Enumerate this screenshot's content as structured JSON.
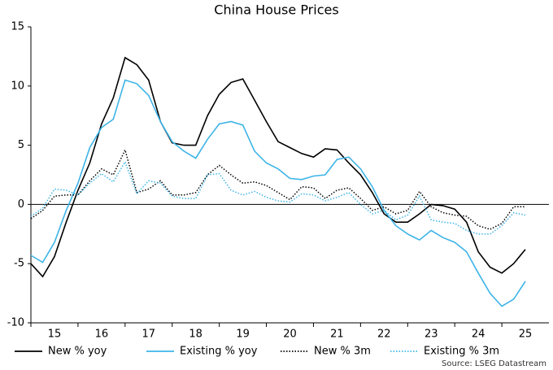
{
  "chart_data": {
    "type": "line",
    "title": "China House Prices",
    "source": "Source: LSEG Datastream",
    "x": [
      15,
      15.25,
      15.5,
      15.75,
      16,
      16.25,
      16.5,
      16.75,
      17,
      17.25,
      17.5,
      17.75,
      18,
      18.25,
      18.5,
      18.75,
      19,
      19.25,
      19.5,
      19.75,
      20,
      20.25,
      20.5,
      20.75,
      21,
      21.25,
      21.5,
      21.75,
      22,
      22.25,
      22.5,
      22.75,
      23,
      23.25,
      23.5,
      23.75,
      24,
      24.25,
      24.5,
      24.75,
      25,
      25.25,
      25.5
    ],
    "series": [
      {
        "name": "New % yoy",
        "color": "#000000",
        "style": "solid",
        "values": [
          -5.0,
          -6.1,
          -4.4,
          -1.5,
          1.2,
          3.5,
          6.8,
          9.0,
          12.4,
          11.8,
          10.5,
          7.0,
          5.2,
          5.0,
          5.0,
          7.5,
          9.3,
          10.3,
          10.6,
          8.8,
          7.0,
          5.3,
          4.8,
          4.3,
          4.0,
          4.7,
          4.6,
          3.5,
          2.5,
          1.0,
          -0.8,
          -1.5,
          -1.5,
          -0.8,
          0.0,
          -0.1,
          -0.4,
          -1.5,
          -4.0,
          -5.3,
          -5.8,
          -5.0,
          -3.8
        ]
      },
      {
        "name": "Existing % yoy",
        "color": "#3db4e8",
        "style": "solid",
        "values": [
          -4.3,
          -4.9,
          -3.2,
          -0.5,
          1.8,
          4.8,
          6.5,
          7.2,
          10.5,
          10.2,
          9.2,
          7.0,
          5.3,
          4.5,
          3.9,
          5.5,
          6.8,
          7.0,
          6.7,
          4.5,
          3.5,
          3.0,
          2.2,
          2.1,
          2.4,
          2.5,
          3.8,
          4.0,
          3.0,
          1.5,
          -0.5,
          -1.8,
          -2.5,
          -3.0,
          -2.2,
          -2.8,
          -3.2,
          -4.0,
          -5.8,
          -7.5,
          -8.6,
          -8.0,
          -6.5
        ]
      },
      {
        "name": "New % 3m",
        "color": "#000000",
        "style": "dotted",
        "values": [
          -1.2,
          -0.5,
          0.7,
          0.8,
          0.8,
          2.0,
          3.0,
          2.5,
          4.6,
          1.0,
          1.3,
          2.0,
          0.8,
          0.8,
          1.0,
          2.5,
          3.3,
          2.5,
          1.8,
          1.9,
          1.6,
          1.0,
          0.4,
          1.5,
          1.4,
          0.5,
          1.2,
          1.4,
          0.5,
          -0.5,
          -0.2,
          -0.8,
          -0.5,
          1.1,
          -0.2,
          -0.7,
          -0.9,
          -1.0,
          -1.8,
          -2.1,
          -1.6,
          -0.2,
          -0.2
        ]
      },
      {
        "name": "Existing % 3m",
        "color": "#3db4e8",
        "style": "dotted",
        "values": [
          -1.0,
          -0.3,
          1.3,
          1.2,
          0.8,
          1.8,
          2.6,
          1.9,
          3.6,
          0.9,
          2.0,
          1.8,
          0.7,
          0.5,
          0.5,
          2.5,
          2.6,
          1.2,
          0.8,
          1.1,
          0.6,
          0.3,
          0.2,
          0.9,
          0.8,
          0.3,
          0.6,
          1.0,
          0.0,
          -0.8,
          -0.5,
          -1.3,
          -0.9,
          0.7,
          -1.3,
          -1.5,
          -1.6,
          -2.2,
          -2.5,
          -2.5,
          -1.8,
          -0.7,
          -0.9
        ]
      }
    ],
    "xlim": [
      15,
      26
    ],
    "xticks": [
      15,
      16,
      17,
      18,
      19,
      20,
      21,
      22,
      23,
      24,
      25
    ],
    "ylim": [
      -10,
      15
    ],
    "yticks": [
      -10,
      -5,
      0,
      5,
      10,
      15
    ]
  }
}
